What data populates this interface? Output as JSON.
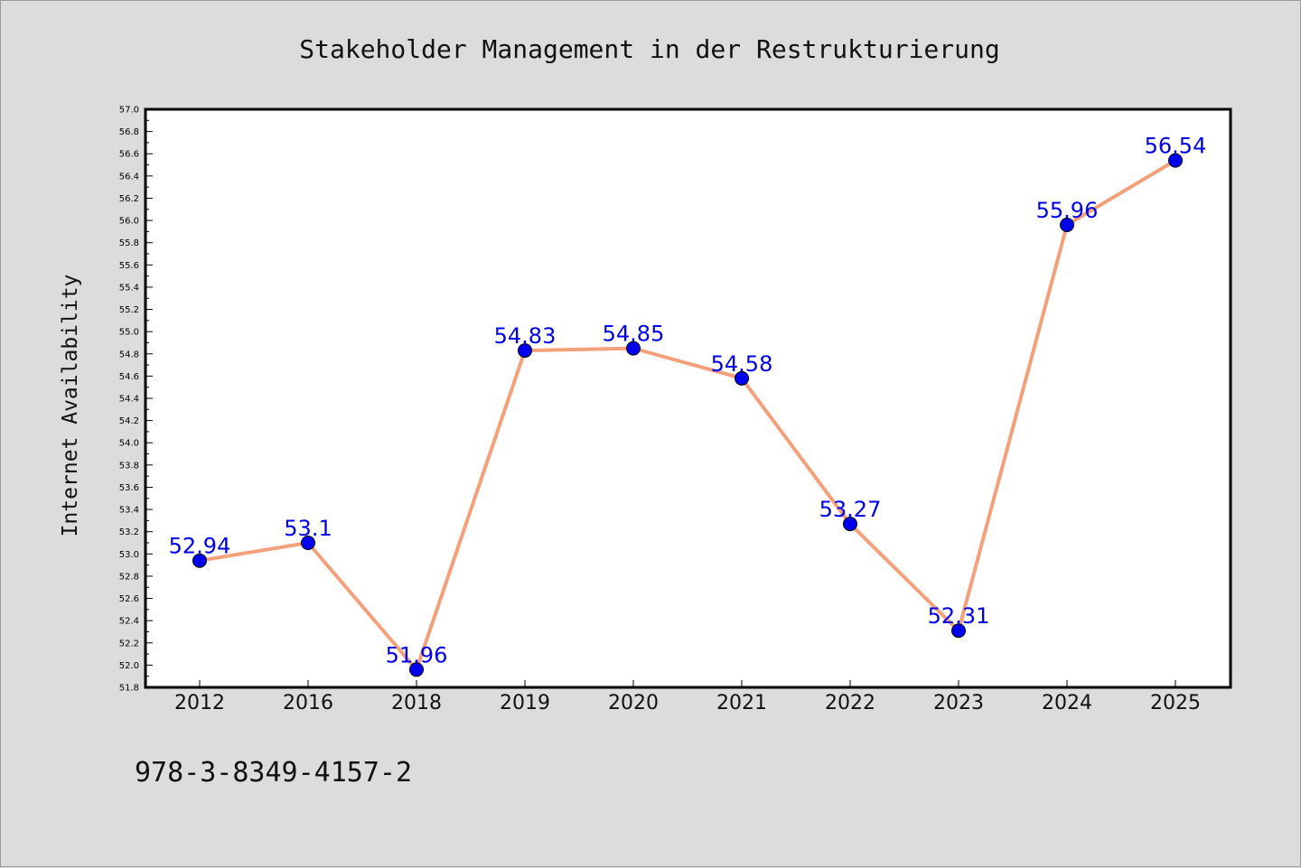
{
  "footer": {
    "isbn": "978-3-8349-4157-2"
  },
  "chart_data": {
    "type": "line",
    "title": "Stakeholder Management in der Restrukturierung",
    "xlabel": "",
    "ylabel": "Internet Availability",
    "categories": [
      "2012",
      "2016",
      "2018",
      "2019",
      "2020",
      "2021",
      "2022",
      "2023",
      "2024",
      "2025"
    ],
    "values": [
      52.94,
      53.1,
      51.96,
      54.83,
      54.85,
      54.58,
      53.27,
      52.31,
      55.96,
      56.54
    ],
    "data_labels": [
      "52.94",
      "53.1",
      "51.96",
      "54.83",
      "54.85",
      "54.58",
      "53.27",
      "52.31",
      "55.96",
      "56.54"
    ],
    "ylim": [
      51.8,
      57.0
    ],
    "yticks": [
      "51.8",
      "52.0",
      "52.2",
      "52.4",
      "52.6",
      "52.8",
      "53.0",
      "53.2",
      "53.4",
      "53.6",
      "53.8",
      "54.0",
      "54.2",
      "54.4",
      "54.6",
      "54.8",
      "55.0",
      "55.2",
      "55.4",
      "55.6",
      "55.8",
      "56.0",
      "56.2",
      "56.4",
      "56.6",
      "56.8",
      "57.0"
    ],
    "grid": false,
    "colors": {
      "line": "#f4a07a",
      "marker": "#0000ee",
      "labels": "#0000ee",
      "background": "#dcdcdc",
      "plot_background": "#ffffff"
    }
  }
}
